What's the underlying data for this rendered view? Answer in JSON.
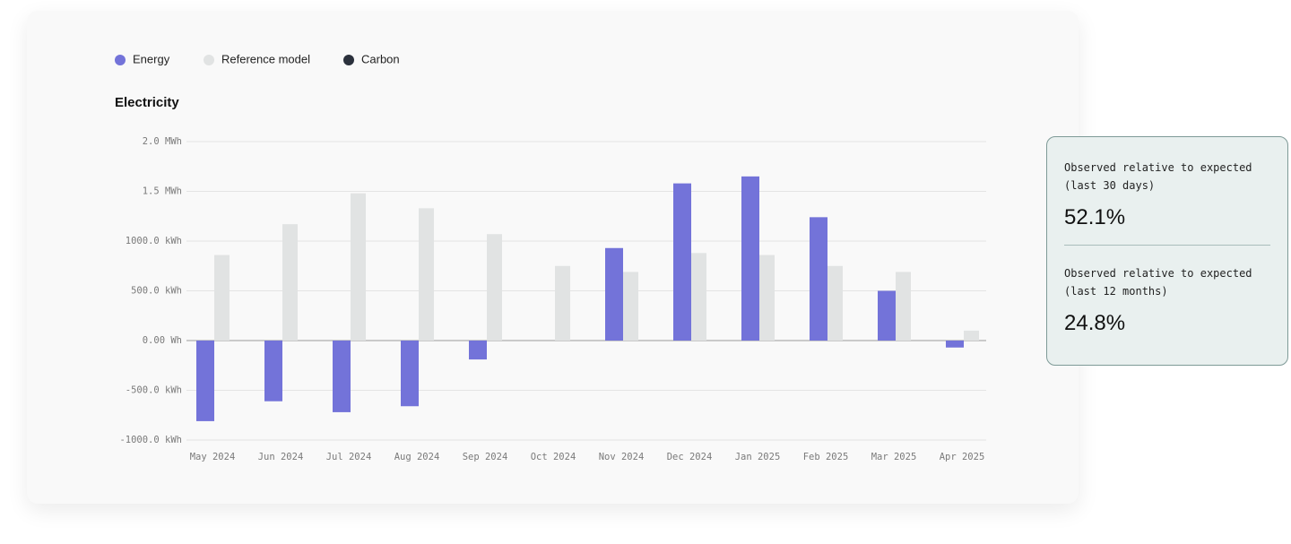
{
  "chart_data": {
    "type": "bar",
    "title": "Electricity",
    "categories": [
      "May 2024",
      "Jun 2024",
      "Jul 2024",
      "Aug 2024",
      "Sep 2024",
      "Oct 2024",
      "Nov 2024",
      "Dec 2024",
      "Jan 2025",
      "Feb 2025",
      "Mar 2025",
      "Apr 2025"
    ],
    "series": [
      {
        "name": "Energy",
        "color": "#7373d9",
        "values": [
          -810,
          -610,
          -720,
          -660,
          -190,
          null,
          930,
          1580,
          1650,
          1240,
          500,
          -70
        ]
      },
      {
        "name": "Reference model",
        "color": "#e1e3e3",
        "values": [
          860,
          1170,
          1480,
          1330,
          1070,
          750,
          690,
          880,
          860,
          750,
          690,
          100
        ]
      },
      {
        "name": "Carbon",
        "color": "#2b313c",
        "values": [
          null,
          null,
          null,
          null,
          null,
          null,
          null,
          null,
          null,
          null,
          null,
          null
        ]
      }
    ],
    "ylim": [
      -1000,
      2000
    ],
    "yticks": [
      {
        "value": -1000,
        "label": "-1000.0 kWh"
      },
      {
        "value": -500,
        "label": "-500.0 kWh"
      },
      {
        "value": 0,
        "label": "0.00 Wh"
      },
      {
        "value": 500,
        "label": "500.0 kWh"
      },
      {
        "value": 1000,
        "label": "1000.0 kWh"
      },
      {
        "value": 1500,
        "label": "1.5 MWh"
      },
      {
        "value": 2000,
        "label": "2.0 MWh"
      }
    ],
    "grid": true
  },
  "stats": [
    {
      "label": "Observed relative to expected (last 30 days)",
      "value": "52.1%"
    },
    {
      "label": "Observed relative to expected (last 12 months)",
      "value": "24.8%"
    }
  ]
}
